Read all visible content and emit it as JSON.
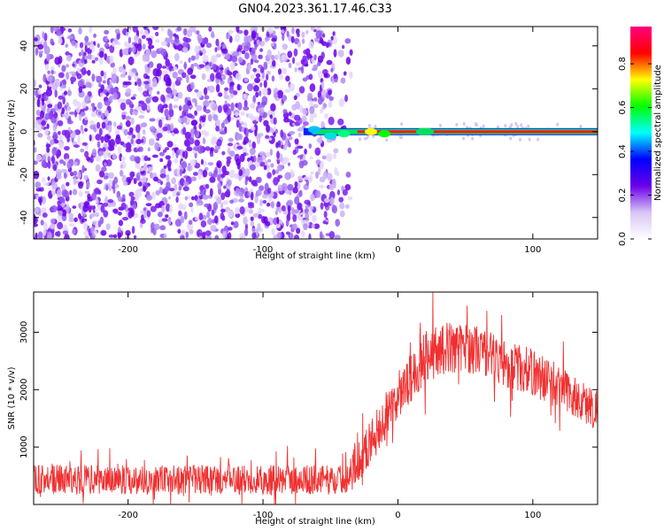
{
  "figure_title": "GN04.2023.361.17.46.C33",
  "chart_data": [
    {
      "type": "heatmap",
      "xlabel": "Height of straight line (km)",
      "ylabel": "Frequency (Hz)",
      "xlim": [
        -270,
        148
      ],
      "ylim": [
        -50,
        49
      ],
      "xticks": [
        -200,
        -100,
        0,
        100
      ],
      "yticks": [
        -40,
        -20,
        0,
        20,
        40
      ],
      "grid": false,
      "colorbar": {
        "label": "Normalized spectral amplitude",
        "range": [
          0.0,
          0.97
        ],
        "ticks": [
          0.0,
          0.2,
          0.4,
          0.6,
          0.8
        ],
        "colormap": [
          "#ffffff",
          "#d8c4f5",
          "#6a00e8",
          "#0000ff",
          "#00ffff",
          "#00ff00",
          "#ffff00",
          "#ff0000",
          "#ff0080"
        ]
      },
      "features": {
        "noise_region_x": [
          -270,
          -40
        ],
        "noise_fades_out_x": [
          -60,
          -40
        ],
        "noise_color": "#7a1cf0",
        "signal_band_frequency_hz": 0,
        "signal_band_start_x": -70,
        "signal_band_end_x": 148
      }
    },
    {
      "type": "line",
      "xlabel": "Height of straight line (km)",
      "ylabel": "SNR (10 * v/v)",
      "xlim": [
        -270,
        148
      ],
      "ylim": [
        0,
        3700
      ],
      "xticks": [
        -200,
        -100,
        0,
        100
      ],
      "yticks": [
        1000,
        2000,
        3000
      ],
      "grid": false,
      "series_color": "#f03030",
      "envelope_x": [
        -270,
        -200,
        -100,
        -40,
        -25,
        -10,
        0,
        10,
        20,
        40,
        60,
        80,
        100,
        120,
        135,
        148
      ],
      "envelope_mean": [
        430,
        430,
        430,
        430,
        900,
        1500,
        1800,
        2200,
        2600,
        2750,
        2700,
        2450,
        2300,
        2050,
        1800,
        1650
      ],
      "envelope_spread": [
        260,
        260,
        260,
        260,
        380,
        420,
        430,
        450,
        480,
        450,
        430,
        420,
        420,
        400,
        380,
        380
      ]
    }
  ]
}
